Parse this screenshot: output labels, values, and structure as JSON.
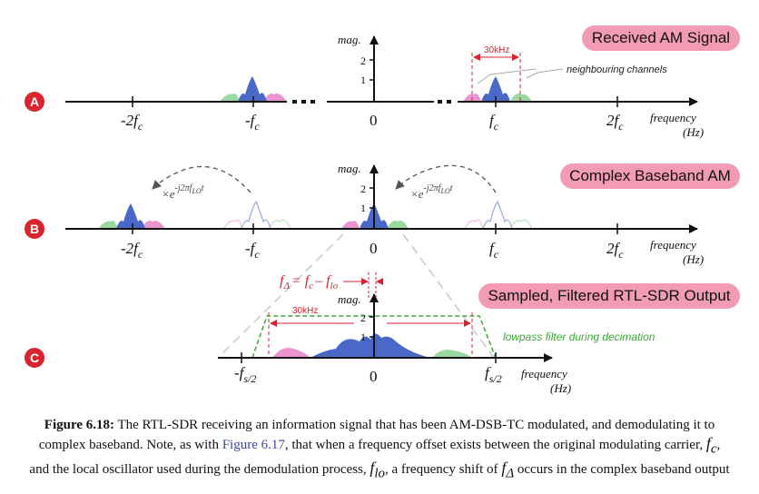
{
  "panels": {
    "a": {
      "badge": "A",
      "title": "Received AM Signal",
      "ylabel": "mag.",
      "ticks": [
        "1",
        "2"
      ],
      "xlabels": {
        "m2fc": "-2f",
        "mfc": "-f",
        "zero": "0",
        "fc": "f",
        "p2fc": "2f",
        "sub": "c"
      },
      "bandwidth_label": "30kHz",
      "neighbour_label": "neighbouring channels",
      "axis_label": [
        "frequency",
        "(Hz)"
      ]
    },
    "b": {
      "badge": "B",
      "title": "Complex Baseband AM",
      "ylabel": "mag.",
      "ticks": [
        "1",
        "2"
      ],
      "xlabels": {
        "m2fc": "-2f",
        "mfc": "-f",
        "zero": "0",
        "fc": "f",
        "p2fc": "2f",
        "sub": "c"
      },
      "mix_base": "×e",
      "mix_exp": "-j2πf",
      "mix_exp_sub": "LO",
      "mix_exp_t": "t",
      "axis_label": [
        "frequency",
        "(Hz)"
      ]
    },
    "c": {
      "badge": "C",
      "title": "Sampled, Filtered RTL-SDR Output",
      "ylabel": "mag.",
      "ticks": [
        "1",
        "2"
      ],
      "xlabels": {
        "mfs": "-f",
        "zero": "0",
        "fs": "f",
        "sub": "s/2"
      },
      "bandwidth_label": "30kHz",
      "filter_label": "lowpass filter during decimation",
      "offset_f": "f",
      "offset_sub": "Δ",
      "offset_eq": "= f",
      "offset_sub2": "c",
      "offset_minus": "– f",
      "offset_sub3": "lo",
      "axis_label": [
        "frequency",
        "(Hz)"
      ]
    }
  },
  "caption": {
    "label": "Figure 6.18:",
    "text1": " The RTL-SDR receiving an information signal that has been AM-DSB-TC modulated, and demodulating it to complex baseband. Note, as with ",
    "ref": "Figure 6.17",
    "text2": ", that when a frequency offset exists between the original modulating carrier, ",
    "fc": "f",
    "fc_sub": "c",
    "text3": ", and the local oscillator used during the demodulation process, ",
    "flo": "f",
    "flo_sub": "lo",
    "text4": ", a frequency shift of ",
    "fd": "f",
    "fd_sub": "Δ",
    "text5": " occurs in the complex baseband output"
  },
  "colors": {
    "main": "#4a68c8",
    "pink": "#e882c8",
    "green": "#7fd08a",
    "red": "#d9232f",
    "filter": "#3aaa3a",
    "pill": "#f39ab4"
  }
}
